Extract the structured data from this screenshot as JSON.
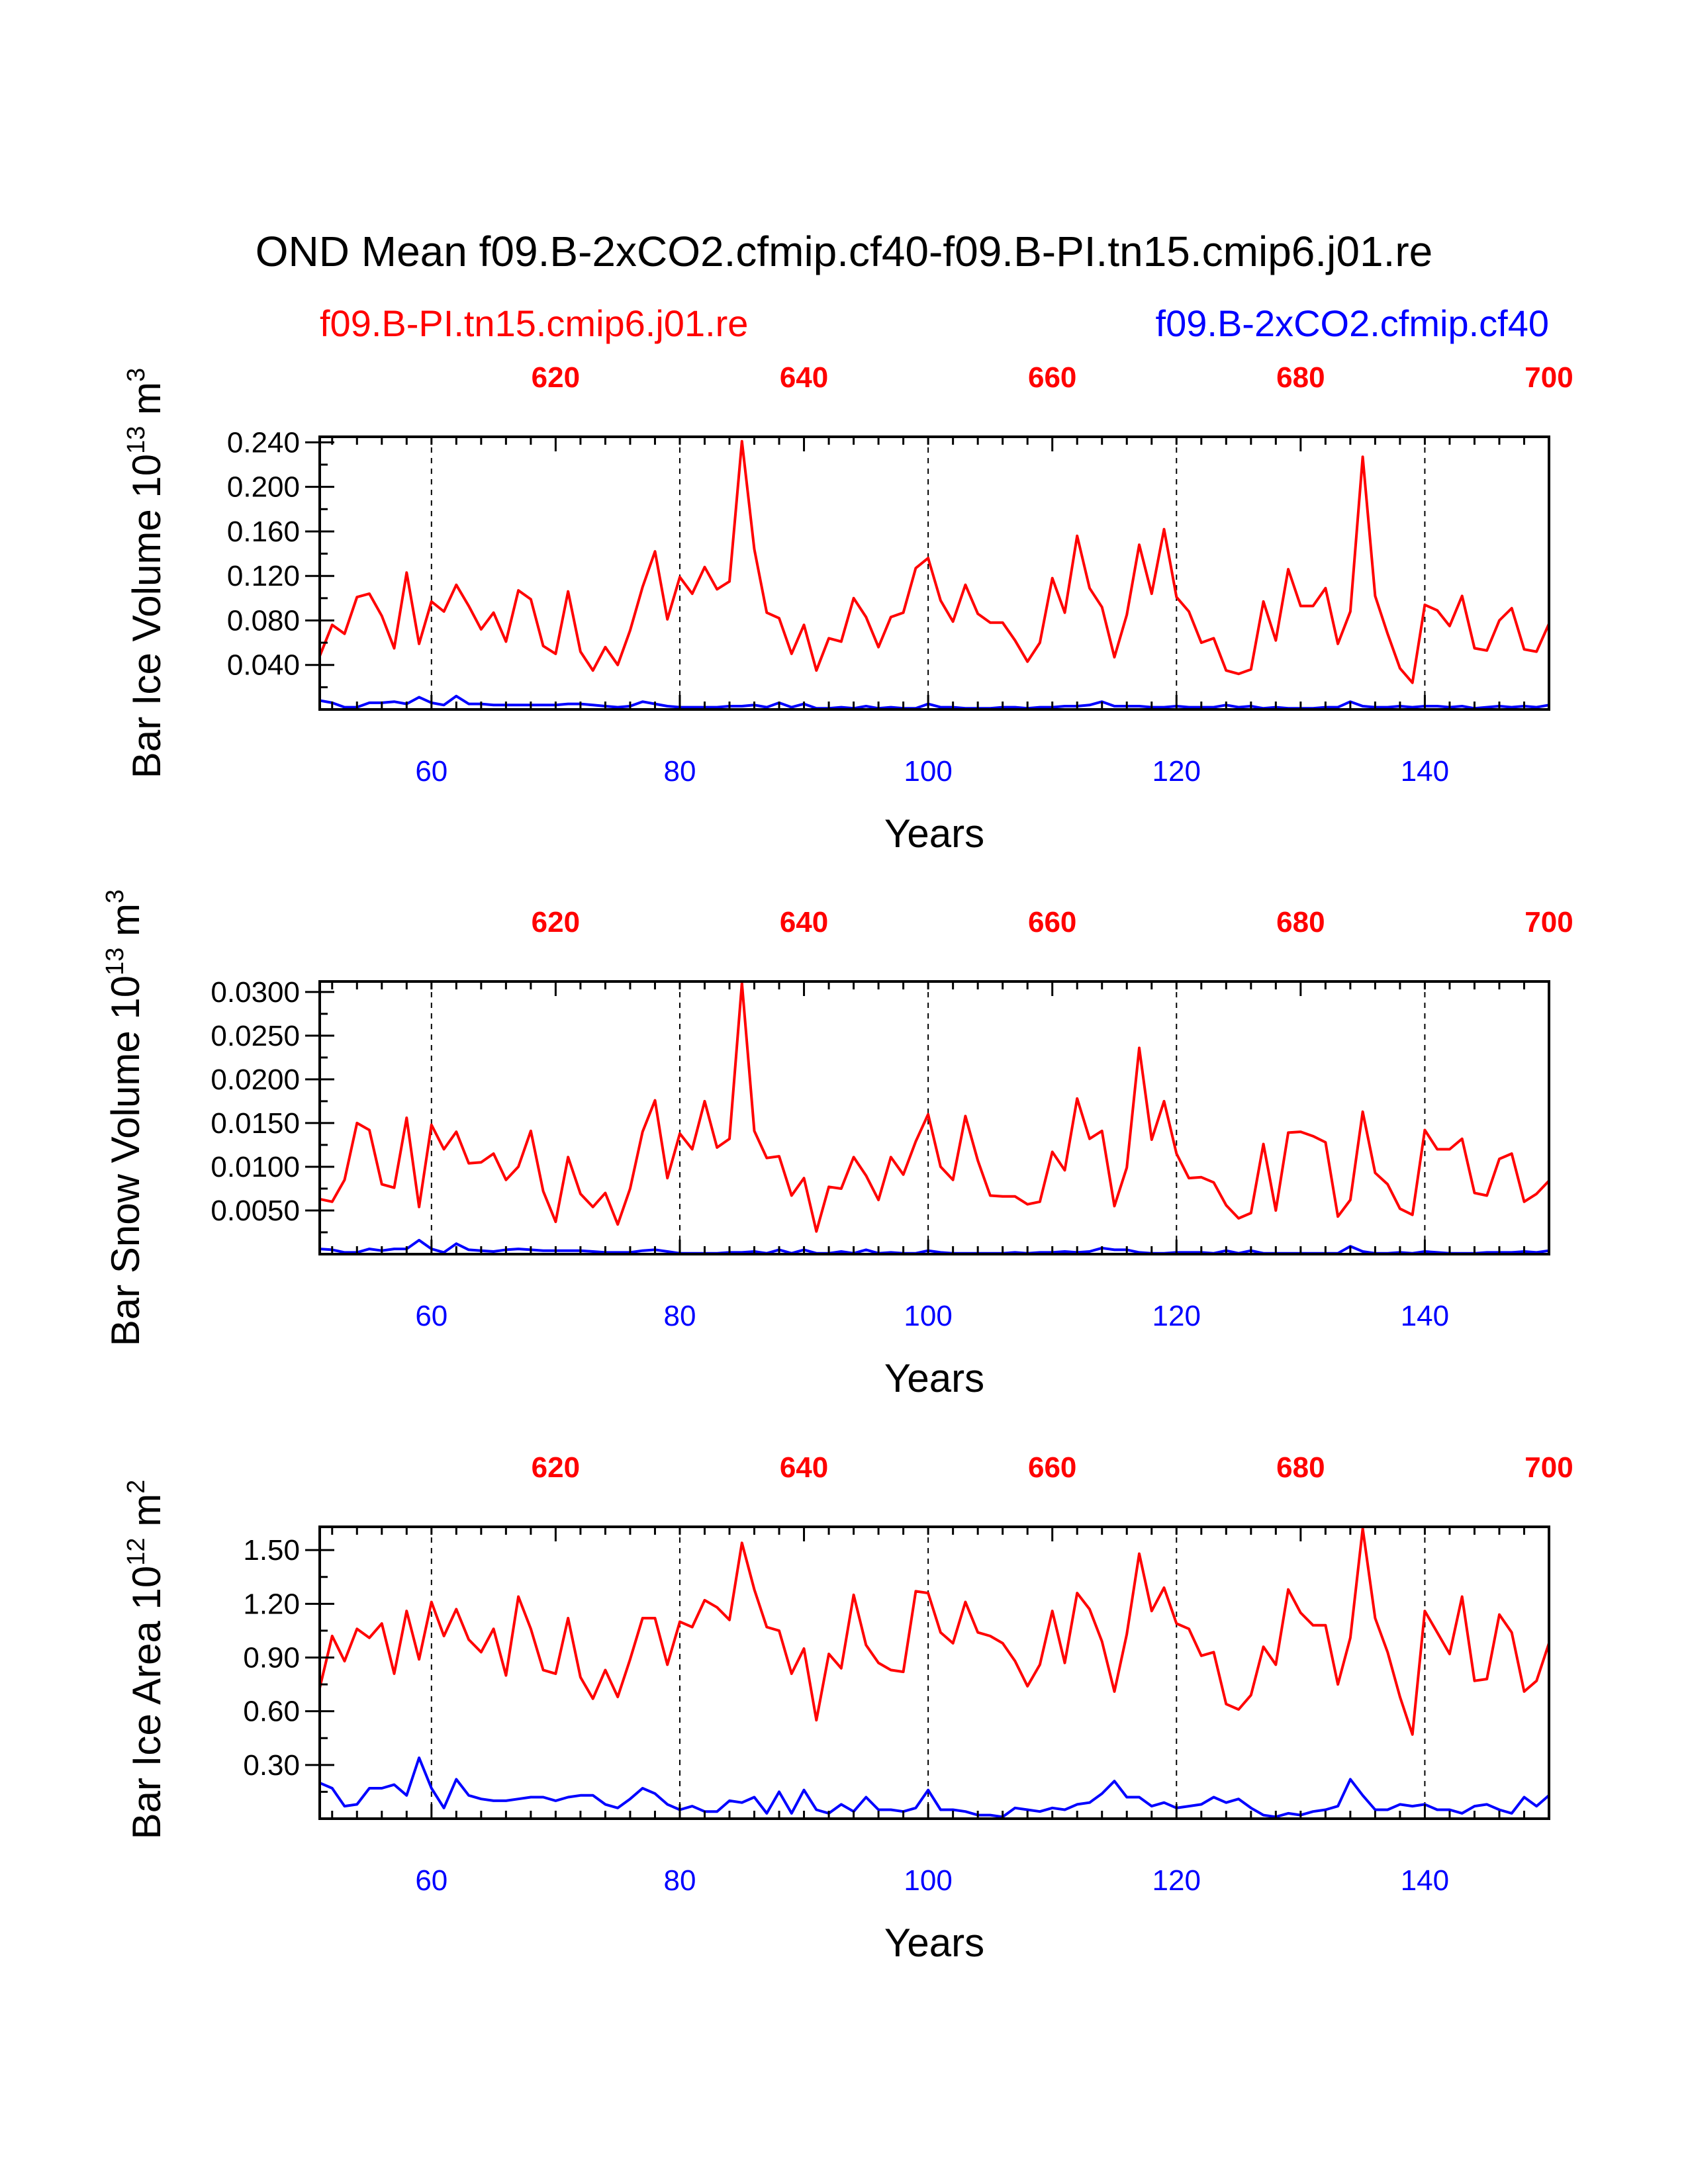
{
  "title": "OND Mean f09.B-2xCO2.cfmip.cf40-f09.B-PI.tn15.cmip6.j01.re",
  "legend": {
    "left": "f09.B-PI.tn15.cmip6.j01.re",
    "right": "f09.B-2xCO2.cfmip.cf40"
  },
  "colors": {
    "ctrl": "#ff0000",
    "exp": "#0000ff",
    "axis": "#000000"
  },
  "chart_data": [
    {
      "type": "line",
      "name": "ice-volume",
      "ylabel": "Bar Ice Volume 10",
      "ylabel_exp": "13",
      "ylabel_unit": "m",
      "ylabel_unit_exp": "3",
      "xlabel": "Years",
      "xlim": [
        51,
        150
      ],
      "ylim": [
        0.0,
        0.245
      ],
      "yticks": [
        0.04,
        0.08,
        0.12,
        0.16,
        0.2,
        0.24
      ],
      "ytick_labels": [
        "0.040",
        "0.080",
        "0.120",
        "0.160",
        "0.200",
        "0.240"
      ],
      "xticks": [
        60,
        80,
        100,
        120,
        140
      ],
      "xtick_labels": [
        "60",
        "80",
        "100",
        "120",
        "140"
      ],
      "top_xticks": [
        620,
        640,
        660,
        680,
        700
      ],
      "top_xtick_labels": [
        "620",
        "640",
        "660",
        "680",
        "700"
      ],
      "top_offset": 550,
      "gridlines_x": [
        60,
        80,
        100,
        120,
        140
      ],
      "series": [
        {
          "name": "f09.B-PI.tn15.cmip6.j01.re",
          "color": "#ff0000",
          "x0": 51,
          "values": [
            0.048,
            0.076,
            0.068,
            0.101,
            0.104,
            0.084,
            0.055,
            0.123,
            0.059,
            0.097,
            0.088,
            0.112,
            0.093,
            0.072,
            0.087,
            0.061,
            0.107,
            0.099,
            0.057,
            0.05,
            0.106,
            0.052,
            0.035,
            0.056,
            0.04,
            0.071,
            0.11,
            0.142,
            0.081,
            0.119,
            0.104,
            0.128,
            0.108,
            0.115,
            0.241,
            0.144,
            0.087,
            0.082,
            0.05,
            0.076,
            0.035,
            0.064,
            0.061,
            0.1,
            0.083,
            0.056,
            0.083,
            0.087,
            0.127,
            0.136,
            0.098,
            0.079,
            0.112,
            0.086,
            0.078,
            0.078,
            0.062,
            0.043,
            0.06,
            0.118,
            0.087,
            0.156,
            0.109,
            0.092,
            0.047,
            0.085,
            0.148,
            0.104,
            0.162,
            0.101,
            0.088,
            0.06,
            0.064,
            0.035,
            0.032,
            0.036,
            0.097,
            0.062,
            0.126,
            0.093,
            0.093,
            0.109,
            0.059,
            0.088,
            0.227,
            0.102,
            0.068,
            0.037,
            0.024,
            0.094,
            0.089,
            0.075,
            0.102,
            0.055,
            0.053,
            0.08,
            0.091,
            0.054,
            0.052,
            0.077
          ]
        },
        {
          "name": "f09.B-2xCO2.cfmip.cf40",
          "color": "#0000ff",
          "x0": 51,
          "values": [
            0.008,
            0.006,
            0.002,
            0.002,
            0.006,
            0.006,
            0.007,
            0.005,
            0.011,
            0.006,
            0.004,
            0.012,
            0.005,
            0.005,
            0.004,
            0.004,
            0.004,
            0.004,
            0.004,
            0.004,
            0.005,
            0.005,
            0.004,
            0.003,
            0.002,
            0.003,
            0.007,
            0.005,
            0.003,
            0.002,
            0.002,
            0.002,
            0.002,
            0.003,
            0.003,
            0.004,
            0.002,
            0.006,
            0.002,
            0.005,
            0.001,
            0.001,
            0.002,
            0.001,
            0.003,
            0.001,
            0.002,
            0.001,
            0.001,
            0.005,
            0.002,
            0.002,
            0.001,
            0.001,
            0.001,
            0.002,
            0.002,
            0.001,
            0.002,
            0.002,
            0.003,
            0.003,
            0.004,
            0.007,
            0.003,
            0.003,
            0.003,
            0.002,
            0.002,
            0.003,
            0.002,
            0.002,
            0.002,
            0.004,
            0.002,
            0.003,
            0.001,
            0.002,
            0.001,
            0.001,
            0.001,
            0.002,
            0.002,
            0.007,
            0.003,
            0.002,
            0.002,
            0.003,
            0.002,
            0.003,
            0.003,
            0.002,
            0.003,
            0.001,
            0.002,
            0.003,
            0.002,
            0.003,
            0.002,
            0.004
          ]
        }
      ]
    },
    {
      "type": "line",
      "name": "snow-volume",
      "ylabel": "Bar Snow Volume 10",
      "ylabel_exp": "13",
      "ylabel_unit": "m",
      "ylabel_unit_exp": "3",
      "xlabel": "Years",
      "xlim": [
        51,
        150
      ],
      "ylim": [
        0.0,
        0.0312
      ],
      "yticks": [
        0.005,
        0.01,
        0.015,
        0.02,
        0.025,
        0.03
      ],
      "ytick_labels": [
        "0.0050",
        "0.0100",
        "0.0150",
        "0.0200",
        "0.0250",
        "0.0300"
      ],
      "xticks": [
        60,
        80,
        100,
        120,
        140
      ],
      "xtick_labels": [
        "60",
        "80",
        "100",
        "120",
        "140"
      ],
      "top_xticks": [
        620,
        640,
        660,
        680,
        700
      ],
      "top_xtick_labels": [
        "620",
        "640",
        "660",
        "680",
        "700"
      ],
      "top_offset": 550,
      "gridlines_x": [
        60,
        80,
        100,
        120,
        140
      ],
      "series": [
        {
          "name": "f09.B-PI.tn15.cmip6.j01.re",
          "color": "#ff0000",
          "x0": 51,
          "values": [
            0.0063,
            0.006,
            0.0085,
            0.015,
            0.0142,
            0.008,
            0.0076,
            0.0156,
            0.0054,
            0.0148,
            0.012,
            0.014,
            0.0104,
            0.0105,
            0.0115,
            0.0085,
            0.01,
            0.0141,
            0.0072,
            0.0037,
            0.0111,
            0.0069,
            0.0054,
            0.007,
            0.0034,
            0.0075,
            0.014,
            0.0176,
            0.0087,
            0.0138,
            0.012,
            0.0175,
            0.0122,
            0.0132,
            0.031,
            0.0141,
            0.011,
            0.0112,
            0.0067,
            0.0087,
            0.0026,
            0.0077,
            0.0075,
            0.0111,
            0.009,
            0.0062,
            0.0111,
            0.0091,
            0.0129,
            0.016,
            0.01,
            0.0085,
            0.0158,
            0.0107,
            0.0067,
            0.0066,
            0.0066,
            0.0057,
            0.006,
            0.0117,
            0.0096,
            0.0178,
            0.0132,
            0.0141,
            0.0055,
            0.0099,
            0.0236,
            0.0131,
            0.0175,
            0.0115,
            0.0087,
            0.0088,
            0.0082,
            0.0056,
            0.0041,
            0.0047,
            0.0126,
            0.005,
            0.0139,
            0.014,
            0.0135,
            0.0128,
            0.0043,
            0.0062,
            0.0163,
            0.0093,
            0.008,
            0.0052,
            0.0045,
            0.0142,
            0.012,
            0.012,
            0.0132,
            0.007,
            0.0067,
            0.0109,
            0.0115,
            0.006,
            0.0069,
            0.0084
          ]
        },
        {
          "name": "f09.B-2xCO2.cfmip.cf40",
          "color": "#0000ff",
          "x0": 51,
          "values": [
            0.0006,
            0.0005,
            0.0002,
            0.0002,
            0.0006,
            0.0004,
            0.0006,
            0.0006,
            0.0016,
            0.0006,
            0.0002,
            0.0012,
            0.0005,
            0.0004,
            0.0003,
            0.0005,
            0.0006,
            0.0005,
            0.0004,
            0.0004,
            0.0004,
            0.0004,
            0.0003,
            0.0002,
            0.0002,
            0.0002,
            0.0004,
            0.0005,
            0.0003,
            0.0001,
            0.0001,
            0.0001,
            0.0001,
            0.0002,
            0.0002,
            0.0003,
            0.0001,
            0.0005,
            0.0001,
            0.0005,
            0.0001,
            0.0001,
            0.0003,
            0.0001,
            0.0005,
            0.0001,
            0.0002,
            0.0001,
            0.0001,
            0.0004,
            0.0002,
            0.0001,
            0.0001,
            0.0001,
            0.0001,
            0.0001,
            0.0002,
            0.0001,
            0.0002,
            0.0002,
            0.0003,
            0.0002,
            0.0003,
            0.0007,
            0.0005,
            0.0005,
            0.0002,
            0.0001,
            0.0001,
            0.0002,
            0.0002,
            0.0002,
            0.0001,
            0.0004,
            0.0001,
            0.0004,
            0.0001,
            0.0001,
            0.0001,
            0.0001,
            0.0001,
            0.0001,
            0.0001,
            0.0009,
            0.0003,
            0.0001,
            0.0001,
            0.0002,
            0.0001,
            0.0003,
            0.0002,
            0.0001,
            0.0001,
            0.0001,
            0.0002,
            0.0002,
            0.0002,
            0.0003,
            0.0002,
            0.0004
          ]
        }
      ]
    },
    {
      "type": "line",
      "name": "ice-area",
      "ylabel": "Bar Ice Area 10",
      "ylabel_exp": "12",
      "ylabel_unit": "m",
      "ylabel_unit_exp": "2",
      "xlabel": "Years",
      "xlim": [
        51,
        150
      ],
      "ylim": [
        0.0,
        1.63
      ],
      "yticks": [
        0.3,
        0.6,
        0.9,
        1.2,
        1.5
      ],
      "ytick_labels": [
        "0.30",
        "0.60",
        "0.90",
        "1.20",
        "1.50"
      ],
      "xticks": [
        60,
        80,
        100,
        120,
        140
      ],
      "xtick_labels": [
        "60",
        "80",
        "100",
        "120",
        "140"
      ],
      "top_xticks": [
        620,
        640,
        660,
        680,
        700
      ],
      "top_xtick_labels": [
        "620",
        "640",
        "660",
        "680",
        "700"
      ],
      "top_offset": 550,
      "gridlines_x": [
        60,
        80,
        100,
        120,
        140
      ],
      "series": [
        {
          "name": "f09.B-PI.tn15.cmip6.j01.re",
          "color": "#ff0000",
          "x0": 51,
          "values": [
            0.73,
            1.02,
            0.88,
            1.06,
            1.01,
            1.09,
            0.81,
            1.16,
            0.89,
            1.21,
            1.02,
            1.17,
            1.0,
            0.93,
            1.06,
            0.8,
            1.24,
            1.06,
            0.83,
            0.81,
            1.12,
            0.79,
            0.67,
            0.83,
            0.68,
            0.89,
            1.12,
            1.12,
            0.86,
            1.1,
            1.07,
            1.22,
            1.18,
            1.11,
            1.54,
            1.28,
            1.07,
            1.05,
            0.81,
            0.95,
            0.55,
            0.92,
            0.84,
            1.25,
            0.97,
            0.87,
            0.83,
            0.82,
            1.27,
            1.26,
            1.04,
            0.98,
            1.21,
            1.04,
            1.02,
            0.98,
            0.88,
            0.74,
            0.86,
            1.16,
            0.87,
            1.26,
            1.17,
            0.99,
            0.71,
            1.03,
            1.48,
            1.16,
            1.29,
            1.09,
            1.06,
            0.91,
            0.93,
            0.64,
            0.61,
            0.69,
            0.96,
            0.86,
            1.28,
            1.15,
            1.08,
            1.08,
            0.75,
            1.01,
            1.62,
            1.12,
            0.93,
            0.68,
            0.47,
            1.16,
            1.04,
            0.92,
            1.24,
            0.77,
            0.78,
            1.14,
            1.04,
            0.71,
            0.77,
            0.98
          ]
        },
        {
          "name": "f09.B-2xCO2.cfmip.cf40",
          "color": "#0000ff",
          "x0": 51,
          "values": [
            0.2,
            0.17,
            0.07,
            0.08,
            0.17,
            0.17,
            0.19,
            0.13,
            0.34,
            0.17,
            0.06,
            0.22,
            0.13,
            0.11,
            0.1,
            0.1,
            0.11,
            0.12,
            0.12,
            0.1,
            0.12,
            0.13,
            0.13,
            0.08,
            0.06,
            0.11,
            0.17,
            0.14,
            0.08,
            0.05,
            0.07,
            0.04,
            0.04,
            0.1,
            0.09,
            0.12,
            0.03,
            0.15,
            0.03,
            0.16,
            0.05,
            0.03,
            0.08,
            0.04,
            0.12,
            0.05,
            0.05,
            0.04,
            0.06,
            0.16,
            0.05,
            0.05,
            0.04,
            0.02,
            0.02,
            0.01,
            0.06,
            0.05,
            0.04,
            0.06,
            0.05,
            0.08,
            0.09,
            0.14,
            0.21,
            0.12,
            0.12,
            0.07,
            0.09,
            0.06,
            0.07,
            0.08,
            0.12,
            0.09,
            0.11,
            0.06,
            0.02,
            0.01,
            0.03,
            0.02,
            0.04,
            0.05,
            0.07,
            0.22,
            0.13,
            0.05,
            0.05,
            0.08,
            0.07,
            0.08,
            0.05,
            0.05,
            0.03,
            0.07,
            0.08,
            0.05,
            0.03,
            0.12,
            0.07,
            0.13
          ]
        }
      ]
    }
  ]
}
